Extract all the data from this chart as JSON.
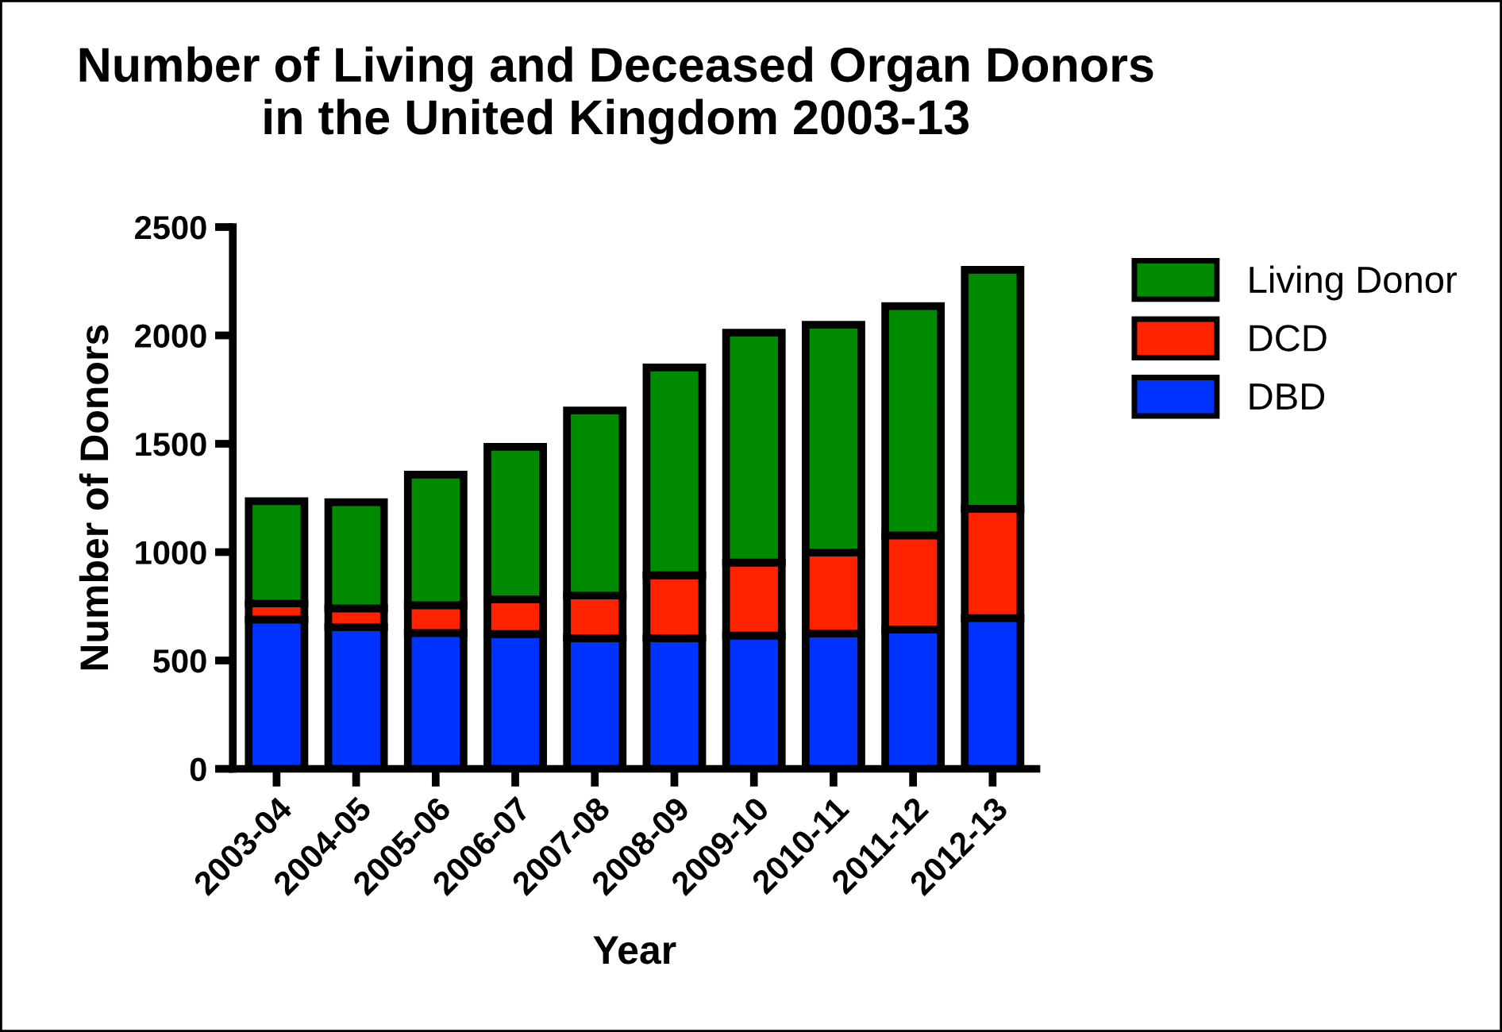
{
  "chart_data": {
    "type": "bar",
    "title": "Number of Living and Deceased Organ Donors\nin the United Kingdom 2003-13",
    "xlabel": "Year",
    "ylabel": "Number of Donors",
    "categories": [
      "2003-04",
      "2004-05",
      "2005-06",
      "2006-07",
      "2007-08",
      "2008-09",
      "2009-10",
      "2010-11",
      "2011-12",
      "2012-13"
    ],
    "stacked": true,
    "series": [
      {
        "name": "DBD",
        "color": "#0033ff",
        "values": [
          689,
          654,
          627,
          622,
          603,
          603,
          615,
          625,
          642,
          696
        ]
      },
      {
        "name": "DCD",
        "color": "#ff2200",
        "values": [
          74,
          86,
          128,
          160,
          197,
          290,
          337,
          374,
          435,
          504
        ]
      },
      {
        "name": "Living Donor",
        "color": "#008a00",
        "values": [
          472,
          490,
          603,
          704,
          853,
          959,
          1060,
          1050,
          1058,
          1103
        ]
      }
    ],
    "ylim": [
      0,
      2500
    ],
    "yticks": [
      0,
      500,
      1000,
      1500,
      2000,
      2500
    ],
    "grid": false,
    "legend": "top right"
  }
}
